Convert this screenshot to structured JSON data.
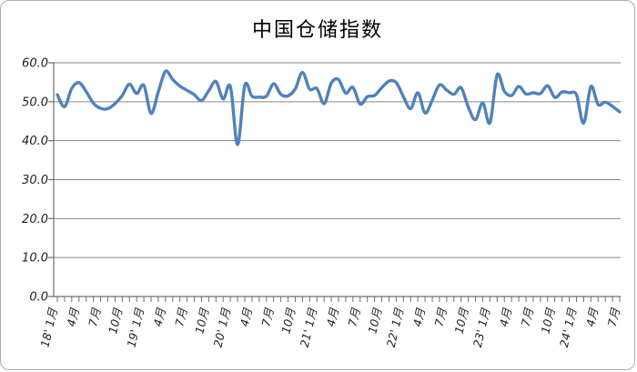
{
  "window": {
    "background": "#ffffff",
    "border_color": "#aeaeae"
  },
  "chart_data": {
    "type": "line",
    "title": "中国仓储指数",
    "grid": true,
    "legend": "none",
    "ylim": [
      0,
      60
    ],
    "y_tick_step": 10,
    "y_tick_labels": [
      "0.0",
      "10.0",
      "20.0",
      "30.0",
      "40.0",
      "50.0",
      "60.0"
    ],
    "x_tick_interval": 3,
    "x_tick_labels": [
      "18' 1月",
      "4月",
      "7月",
      "10月",
      "19' 1月",
      "4月",
      "7月",
      "10月",
      "20' 1月",
      "4月",
      "7月",
      "10月",
      "21' 1月",
      "4月",
      "7月",
      "10月",
      "22' 1月",
      "4月",
      "7月",
      "10月",
      "23' 1月",
      "4月",
      "7月",
      "10月",
      "24' 1月",
      "4月",
      "7月"
    ],
    "series": [
      {
        "name": "中国仓储指数",
        "start_month": "2018-01",
        "end_month": "2024-07",
        "values": [
          51.8,
          48.7,
          53.4,
          54.9,
          52.6,
          49.6,
          48.3,
          48.2,
          49.5,
          51.6,
          54.5,
          52.1,
          54.2,
          47.0,
          52.5,
          57.8,
          55.7,
          54.0,
          52.9,
          51.8,
          50.3,
          52.8,
          55.2,
          50.7,
          53.9,
          39.0,
          54.2,
          51.4,
          51.2,
          51.4,
          54.6,
          51.9,
          51.5,
          53.3,
          57.5,
          53.2,
          53.4,
          49.5,
          54.8,
          55.7,
          52.2,
          53.7,
          49.4,
          51.3,
          51.6,
          53.6,
          55.3,
          54.9,
          51.3,
          48.2,
          52.3,
          47.1,
          50.4,
          54.3,
          53.0,
          51.9,
          53.6,
          48.6,
          45.4,
          49.7,
          44.6,
          56.9,
          52.7,
          51.6,
          53.9,
          52.0,
          52.3,
          52.1,
          54.1,
          51.1,
          52.5,
          52.3,
          51.8,
          44.5,
          53.9,
          49.3,
          49.9,
          48.8,
          47.4
        ]
      }
    ],
    "colors": {
      "line": "#4F81BD",
      "gridline": "#868686",
      "axis": "#6e6e6e",
      "tick_text": "#1f1f1f",
      "title_text": "#000000"
    }
  }
}
